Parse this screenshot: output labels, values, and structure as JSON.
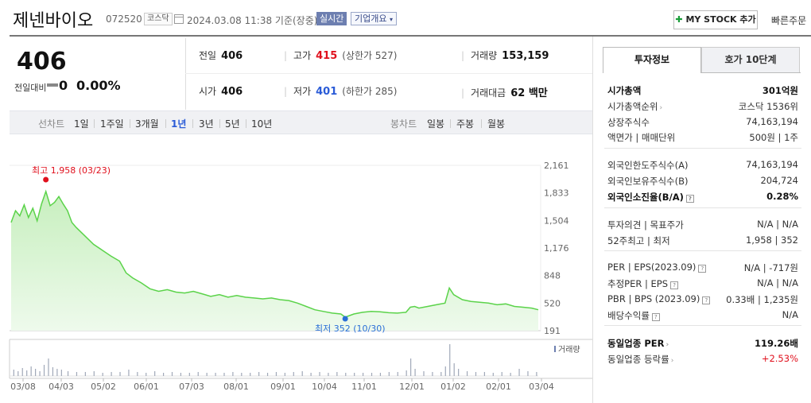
{
  "header": {
    "company_name": "제넨바이오",
    "code": "072520",
    "market": "코스닥",
    "datetime": "2024.03.08 11:38 기준(장중)",
    "realtime": "실시간",
    "overview": "기업개요",
    "mystock": "MY STOCK 추가",
    "quick_order": "빠른주문"
  },
  "quote": {
    "price": "406",
    "change_label": "전일대비",
    "change": "0",
    "change_pct": "0.00%",
    "prev_close_label": "전일",
    "prev_close": "406",
    "high_label": "고가",
    "high": "415",
    "upper_limit": "(상한가 527)",
    "volume_label": "거래량",
    "volume": "153,159",
    "open_label": "시가",
    "open": "406",
    "low_label": "저가",
    "low": "401",
    "lower_limit": "(하한가 285)",
    "trade_value_label": "거래대금",
    "trade_value": "62 백만"
  },
  "period_bar": {
    "line_label": "선차트",
    "periods": [
      "1일",
      "1주일",
      "3개월",
      "1년",
      "3년",
      "5년",
      "10년"
    ],
    "selected": "1년",
    "candle_label": "봉차트",
    "candles": [
      "일봉",
      "주봉",
      "월봉"
    ]
  },
  "chart_data": {
    "type": "area",
    "y_ticks": [
      "2,161",
      "1,833",
      "1,504",
      "1,176",
      "848",
      "520",
      "191"
    ],
    "ylim": [
      191,
      2161
    ],
    "x_ticks": [
      "03/08",
      "04/03",
      "05/02",
      "06/01",
      "07/03",
      "08/01",
      "09/01",
      "10/04",
      "11/01",
      "12/01",
      "01/02",
      "02/01",
      "03/04"
    ],
    "high_label": "최고 1,958 (03/23)",
    "low_label": "최저 352 (10/30)",
    "volume_label": "거래량",
    "price_points": [
      [
        0,
        1480
      ],
      [
        2,
        1620
      ],
      [
        4,
        1560
      ],
      [
        6,
        1690
      ],
      [
        8,
        1540
      ],
      [
        10,
        1650
      ],
      [
        12,
        1500
      ],
      [
        14,
        1700
      ],
      [
        16,
        1850
      ],
      [
        18,
        1680
      ],
      [
        20,
        1720
      ],
      [
        22,
        1790
      ],
      [
        24,
        1700
      ],
      [
        26,
        1620
      ],
      [
        28,
        1480
      ],
      [
        30,
        1420
      ],
      [
        34,
        1320
      ],
      [
        38,
        1220
      ],
      [
        42,
        1150
      ],
      [
        46,
        1080
      ],
      [
        50,
        1020
      ],
      [
        53,
        880
      ],
      [
        56,
        820
      ],
      [
        60,
        760
      ],
      [
        64,
        690
      ],
      [
        68,
        660
      ],
      [
        72,
        680
      ],
      [
        76,
        650
      ],
      [
        80,
        640
      ],
      [
        84,
        660
      ],
      [
        88,
        630
      ],
      [
        92,
        600
      ],
      [
        96,
        620
      ],
      [
        100,
        590
      ],
      [
        104,
        610
      ],
      [
        108,
        590
      ],
      [
        112,
        580
      ],
      [
        116,
        570
      ],
      [
        120,
        580
      ],
      [
        124,
        560
      ],
      [
        128,
        550
      ],
      [
        132,
        520
      ],
      [
        136,
        480
      ],
      [
        140,
        440
      ],
      [
        144,
        420
      ],
      [
        148,
        400
      ],
      [
        152,
        390
      ],
      [
        154,
        352
      ],
      [
        158,
        390
      ],
      [
        162,
        410
      ],
      [
        166,
        420
      ],
      [
        170,
        415
      ],
      [
        174,
        405
      ],
      [
        178,
        400
      ],
      [
        182,
        410
      ],
      [
        184,
        470
      ],
      [
        186,
        480
      ],
      [
        188,
        460
      ],
      [
        192,
        480
      ],
      [
        196,
        500
      ],
      [
        200,
        520
      ],
      [
        202,
        700
      ],
      [
        204,
        620
      ],
      [
        208,
        560
      ],
      [
        212,
        540
      ],
      [
        216,
        530
      ],
      [
        220,
        520
      ],
      [
        224,
        500
      ],
      [
        228,
        510
      ],
      [
        232,
        480
      ],
      [
        236,
        470
      ],
      [
        240,
        460
      ],
      [
        243,
        440
      ]
    ],
    "volume_bars": [
      [
        1,
        8
      ],
      [
        3,
        6
      ],
      [
        5,
        10
      ],
      [
        7,
        7
      ],
      [
        9,
        12
      ],
      [
        11,
        9
      ],
      [
        13,
        6
      ],
      [
        15,
        14
      ],
      [
        17,
        22
      ],
      [
        19,
        11
      ],
      [
        21,
        9
      ],
      [
        23,
        8
      ],
      [
        26,
        6
      ],
      [
        30,
        5
      ],
      [
        34,
        5
      ],
      [
        38,
        6
      ],
      [
        42,
        4
      ],
      [
        46,
        5
      ],
      [
        50,
        5
      ],
      [
        54,
        8
      ],
      [
        58,
        5
      ],
      [
        62,
        4
      ],
      [
        66,
        6
      ],
      [
        70,
        4
      ],
      [
        74,
        5
      ],
      [
        78,
        4
      ],
      [
        82,
        4
      ],
      [
        86,
        5
      ],
      [
        90,
        4
      ],
      [
        94,
        4
      ],
      [
        98,
        4
      ],
      [
        102,
        5
      ],
      [
        106,
        4
      ],
      [
        110,
        4
      ],
      [
        114,
        5
      ],
      [
        118,
        4
      ],
      [
        122,
        5
      ],
      [
        126,
        4
      ],
      [
        130,
        5
      ],
      [
        134,
        6
      ],
      [
        138,
        4
      ],
      [
        142,
        5
      ],
      [
        146,
        4
      ],
      [
        150,
        5
      ],
      [
        154,
        4
      ],
      [
        158,
        4
      ],
      [
        162,
        4
      ],
      [
        166,
        4
      ],
      [
        170,
        4
      ],
      [
        174,
        5
      ],
      [
        178,
        5
      ],
      [
        182,
        7
      ],
      [
        184,
        22
      ],
      [
        186,
        9
      ],
      [
        190,
        6
      ],
      [
        194,
        5
      ],
      [
        198,
        5
      ],
      [
        200,
        12
      ],
      [
        202,
        40
      ],
      [
        204,
        16
      ],
      [
        206,
        9
      ],
      [
        210,
        6
      ],
      [
        214,
        5
      ],
      [
        218,
        5
      ],
      [
        222,
        4
      ],
      [
        226,
        5
      ],
      [
        230,
        4
      ],
      [
        234,
        9
      ],
      [
        238,
        6
      ],
      [
        242,
        5
      ]
    ]
  },
  "side": {
    "tab_on": "투자정보",
    "tab_off": "호가 10단계",
    "rows": [
      {
        "k": "시가총액",
        "v": "301억원",
        "bold": true
      },
      {
        "k": "시가총액순위",
        "v": "코스닥 1536위"
      },
      {
        "k": "상장주식수",
        "v": "74,163,194"
      },
      {
        "k": "액면가 | 매매단위",
        "v": "500원 | 1주"
      },
      {
        "k": "외국인한도주식수(A)",
        "v": "74,163,194"
      },
      {
        "k": "외국인보유주식수(B)",
        "v": "204,724"
      },
      {
        "k": "외국인소진율(B/A)",
        "v": "0.28%",
        "bold": true
      },
      {
        "k": "투자의견 | 목표주가",
        "v": "N/A | N/A"
      },
      {
        "k": "52주최고 | 최저",
        "v": "1,958 | 352"
      },
      {
        "k": "PER | EPS(2023.09)",
        "v": "N/A | -717원"
      },
      {
        "k": "추정PER | EPS",
        "v": "N/A | N/A"
      },
      {
        "k": "PBR | BPS (2023.09)",
        "v": "0.33배 | 1,235원"
      },
      {
        "k": "배당수익률",
        "v": "N/A"
      },
      {
        "k": "동일업종 PER",
        "v": "119.26배",
        "bold": true
      },
      {
        "k": "동일업종 등락률",
        "v": "+2.53%"
      }
    ]
  }
}
